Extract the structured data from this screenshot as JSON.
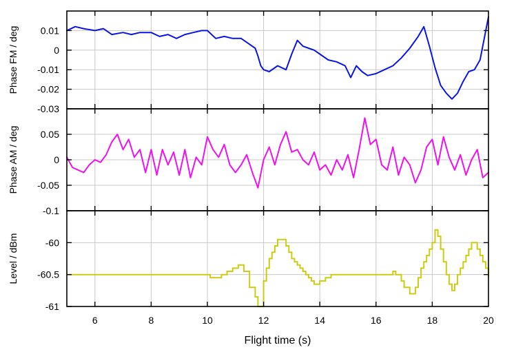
{
  "chart_data": {
    "type": "line",
    "xlabel": "Flight time (s)",
    "xlim": [
      5,
      20
    ],
    "x_ticks": [
      6,
      8,
      10,
      12,
      14,
      16,
      18,
      20
    ],
    "panels": [
      {
        "ylabel": "Phase FM / deg",
        "ylim": [
          -0.03,
          0.02
        ],
        "y_ticks": [
          0.01,
          0,
          -0.01,
          -0.02,
          -0.03
        ],
        "y_tick_labels": [
          "0.01",
          "0",
          "-0.01",
          "-0.02",
          "-0.03"
        ],
        "grid": true,
        "series": [
          {
            "color": "#0a14e6",
            "x": [
              5.0,
              5.3,
              5.6,
              6.0,
              6.3,
              6.6,
              7.0,
              7.3,
              7.6,
              8.0,
              8.3,
              8.6,
              8.9,
              9.2,
              9.5,
              9.8,
              10.0,
              10.3,
              10.6,
              10.9,
              11.2,
              11.5,
              11.7,
              11.8,
              11.9,
              12.0,
              12.2,
              12.5,
              12.8,
              13.0,
              13.2,
              13.4,
              13.6,
              13.8,
              14.0,
              14.3,
              14.6,
              14.9,
              15.1,
              15.3,
              15.5,
              15.7,
              16.0,
              16.3,
              16.6,
              16.9,
              17.2,
              17.5,
              17.7,
              17.9,
              18.1,
              18.3,
              18.5,
              18.7,
              18.9,
              19.1,
              19.3,
              19.5,
              19.7,
              20.0
            ],
            "y": [
              0.01,
              0.012,
              0.011,
              0.01,
              0.011,
              0.008,
              0.009,
              0.008,
              0.009,
              0.009,
              0.007,
              0.008,
              0.006,
              0.008,
              0.009,
              0.01,
              0.01,
              0.006,
              0.007,
              0.006,
              0.006,
              0.003,
              0.001,
              -0.003,
              -0.008,
              -0.01,
              -0.011,
              -0.008,
              -0.01,
              -0.002,
              0.005,
              0.002,
              0.001,
              0.0,
              -0.002,
              -0.005,
              -0.006,
              -0.008,
              -0.014,
              -0.008,
              -0.011,
              -0.013,
              -0.012,
              -0.01,
              -0.008,
              -0.004,
              0.001,
              0.007,
              0.012,
              0.002,
              -0.009,
              -0.018,
              -0.022,
              -0.025,
              -0.022,
              -0.016,
              -0.011,
              -0.01,
              -0.005,
              0.017
            ]
          }
        ]
      },
      {
        "ylabel": "Phase AM / deg",
        "ylim": [
          -0.1,
          0.1
        ],
        "y_ticks": [
          0.05,
          0,
          -0.05,
          -0.1
        ],
        "y_tick_labels": [
          "0.05",
          "0",
          "-0.05",
          "-0.1"
        ],
        "grid": true,
        "series": [
          {
            "color": "#ee10ee",
            "x": [
              5.0,
              5.2,
              5.4,
              5.6,
              5.8,
              6.0,
              6.2,
              6.4,
              6.6,
              6.8,
              7.0,
              7.2,
              7.4,
              7.6,
              7.8,
              8.0,
              8.2,
              8.4,
              8.6,
              8.8,
              9.0,
              9.2,
              9.4,
              9.6,
              9.8,
              10.0,
              10.2,
              10.4,
              10.6,
              10.8,
              11.0,
              11.2,
              11.4,
              11.6,
              11.8,
              12.0,
              12.2,
              12.4,
              12.6,
              12.8,
              13.0,
              13.2,
              13.4,
              13.6,
              13.8,
              14.0,
              14.2,
              14.4,
              14.6,
              14.8,
              15.0,
              15.2,
              15.4,
              15.6,
              15.8,
              16.0,
              16.2,
              16.4,
              16.6,
              16.8,
              17.0,
              17.2,
              17.4,
              17.6,
              17.8,
              18.0,
              18.2,
              18.4,
              18.6,
              18.8,
              19.0,
              19.2,
              19.4,
              19.6,
              19.8,
              20.0
            ],
            "y": [
              0.005,
              -0.015,
              -0.02,
              -0.025,
              -0.01,
              0.0,
              -0.005,
              0.01,
              0.035,
              0.05,
              0.02,
              0.04,
              0.005,
              0.02,
              -0.025,
              0.02,
              -0.03,
              0.02,
              -0.01,
              0.015,
              -0.03,
              0.02,
              -0.035,
              0.005,
              -0.01,
              0.045,
              0.02,
              0.005,
              0.03,
              -0.01,
              -0.025,
              -0.01,
              0.01,
              -0.025,
              -0.055,
              0.0,
              0.025,
              -0.01,
              0.03,
              0.055,
              0.015,
              0.02,
              0.0,
              -0.01,
              0.015,
              -0.02,
              -0.01,
              -0.03,
              0.0,
              -0.02,
              0.01,
              -0.035,
              0.02,
              0.082,
              0.03,
              0.04,
              -0.01,
              -0.02,
              0.025,
              -0.03,
              0.005,
              -0.01,
              -0.045,
              -0.02,
              0.025,
              0.04,
              -0.01,
              0.045,
              0.005,
              -0.02,
              0.01,
              -0.03,
              0.0,
              0.02,
              -0.035,
              -0.025
            ]
          }
        ]
      },
      {
        "ylabel": "Level / dBm",
        "ylim": [
          -61.0,
          -59.5
        ],
        "y_ticks": [
          -60,
          -60.5,
          -61
        ],
        "y_tick_labels": [
          "-60",
          "-60.5",
          "-61"
        ],
        "grid": true,
        "series": [
          {
            "color": "#cccc10",
            "step": true,
            "x": [
              5.0,
              10.0,
              10.1,
              10.3,
              10.5,
              10.7,
              10.9,
              11.1,
              11.3,
              11.5,
              11.7,
              11.8,
              11.9,
              12.0,
              12.1,
              12.2,
              12.3,
              12.4,
              12.5,
              12.7,
              12.8,
              12.9,
              13.0,
              13.1,
              13.2,
              13.3,
              13.4,
              13.5,
              13.6,
              13.7,
              13.8,
              14.0,
              14.2,
              14.4,
              16.5,
              16.6,
              16.7,
              16.9,
              17.0,
              17.2,
              17.4,
              17.5,
              17.6,
              17.7,
              17.8,
              17.9,
              18.0,
              18.1,
              18.2,
              18.3,
              18.4,
              18.5,
              18.6,
              18.7,
              18.8,
              18.9,
              19.0,
              19.1,
              19.2,
              19.3,
              19.4,
              19.5,
              19.6,
              19.7,
              19.8,
              19.9,
              20.0
            ],
            "y": [
              -60.5,
              -60.5,
              -60.55,
              -60.55,
              -60.5,
              -60.45,
              -60.4,
              -60.35,
              -60.45,
              -60.7,
              -60.85,
              -61.0,
              -61.0,
              -60.6,
              -60.4,
              -60.25,
              -60.15,
              -60.05,
              -59.95,
              -59.95,
              -60.05,
              -60.15,
              -60.25,
              -60.3,
              -60.35,
              -60.4,
              -60.45,
              -60.5,
              -60.55,
              -60.6,
              -60.65,
              -60.6,
              -60.55,
              -60.5,
              -60.5,
              -60.45,
              -60.5,
              -60.6,
              -60.7,
              -60.8,
              -60.7,
              -60.55,
              -60.4,
              -60.3,
              -60.2,
              -60.1,
              -60.0,
              -59.8,
              -59.9,
              -60.1,
              -60.3,
              -60.5,
              -60.65,
              -60.75,
              -60.65,
              -60.5,
              -60.4,
              -60.3,
              -60.2,
              -60.1,
              -60.0,
              -60.0,
              -60.1,
              -60.2,
              -60.3,
              -60.4,
              -60.55
            ]
          }
        ]
      }
    ]
  }
}
